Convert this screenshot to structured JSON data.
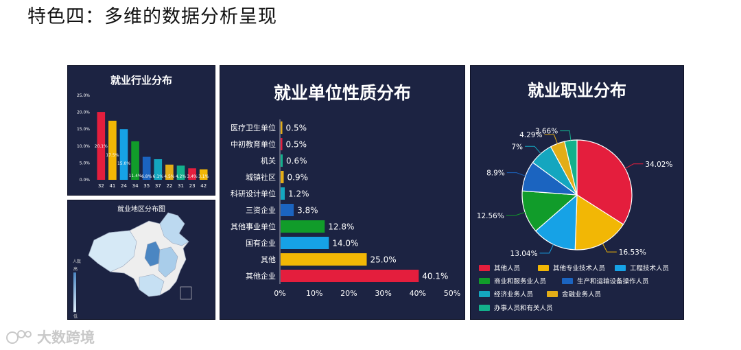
{
  "page": {
    "title": "特色四：多维的数据分析呈现"
  },
  "watermark": {
    "text": "大数跨境"
  },
  "chart_data": [
    {
      "type": "bar",
      "title": "就业行业分布",
      "categories": [
        "32",
        "41",
        "24",
        "34",
        "35",
        "37",
        "22",
        "31",
        "23",
        "42"
      ],
      "values": [
        20.1,
        17.5,
        15.0,
        11.4,
        6.8,
        6.1,
        4.5,
        4.2,
        3.4,
        3.1
      ],
      "data_labels": [
        "20.1%",
        "17.5%",
        "15.0%",
        "11.4%",
        "6.8%",
        "6.1%",
        "4.5%",
        "4.2%",
        "3.4%",
        "3.1%"
      ],
      "colors": [
        "#e41e3d",
        "#f2b705",
        "#16a2e6",
        "#119c2a",
        "#1b64c0",
        "#14a6bf",
        "#e3ad17",
        "#13b08c",
        "#e41e3d",
        "#f2b705"
      ],
      "yticks": [
        "0.0%",
        "5.0%",
        "10.0%",
        "15.0%",
        "20.0%",
        "25.0%"
      ],
      "ylim": [
        0,
        25
      ],
      "grid": false
    },
    {
      "type": "bar",
      "orientation": "horizontal",
      "title": "就业单位性质分布",
      "categories": [
        "医疗卫生单位",
        "中初教育单位",
        "机关",
        "城镇社区",
        "科研设计单位",
        "三资企业",
        "其他事业单位",
        "国有企业",
        "其他",
        "其他企业"
      ],
      "values": [
        0.5,
        0.5,
        0.6,
        0.9,
        1.2,
        3.8,
        12.8,
        14.0,
        25.0,
        40.1
      ],
      "data_labels": [
        "0.5%",
        "0.5%",
        "0.6%",
        "0.9%",
        "1.2%",
        "3.8%",
        "12.8%",
        "14.0%",
        "25.0%",
        "40.1%"
      ],
      "colors": [
        "#e3ad17",
        "#e41e3d",
        "#13b08c",
        "#e3ad17",
        "#14a6bf",
        "#1b64c0",
        "#119c2a",
        "#16a2e6",
        "#f2b705",
        "#e41e3d"
      ],
      "xticks": [
        "0%",
        "10%",
        "20%",
        "30%",
        "40%",
        "50%"
      ],
      "xlim": [
        0,
        50
      ],
      "grid": false
    },
    {
      "type": "pie",
      "title": "就业职业分布",
      "labels": [
        "其他人员",
        "其他专业技术人员",
        "工程技术人员",
        "商业和服务业人员",
        "生产和运输设备操作人员",
        "经济业务人员",
        "金融业务人员",
        "办事人员和有关人员"
      ],
      "values": [
        34.02,
        16.53,
        13.04,
        12.56,
        8.9,
        7,
        4.29,
        3.66
      ],
      "data_labels": [
        "34.02%",
        "16.53%",
        "13.04%",
        "12.56%",
        "8.9%",
        "7%",
        "4.29%",
        "3.66%"
      ],
      "colors": [
        "#e41e3d",
        "#f2b705",
        "#16a2e6",
        "#119c2a",
        "#1b64c0",
        "#14a6bf",
        "#e3ad17",
        "#13b08c"
      ],
      "legend_position": "bottom"
    }
  ],
  "map_panel": {
    "title": "就业地区分布图",
    "legend_title": "人数",
    "legend_high": "高",
    "legend_low": "低"
  }
}
